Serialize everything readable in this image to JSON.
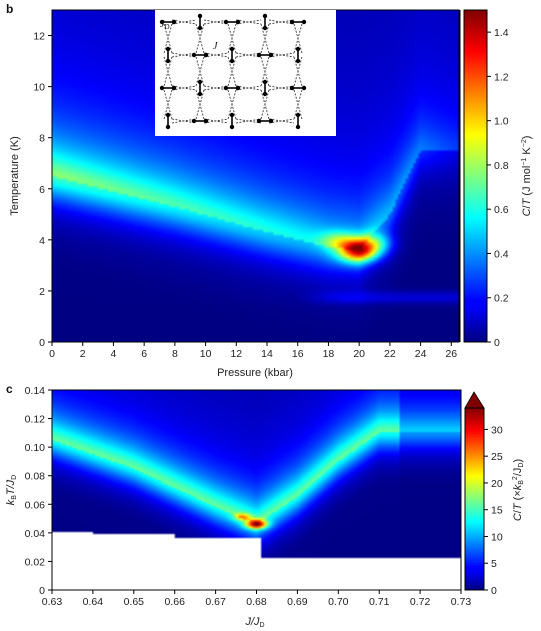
{
  "panel_b": {
    "label": "b",
    "inset": {
      "label_jd": "J",
      "label_jd_sub": "D",
      "label_j": "J"
    },
    "colorbar": {
      "label_main": "C/T (J mol",
      "label_exp1": "−1",
      "label_mid": " K",
      "label_exp2": "−2",
      "label_end": ")"
    }
  },
  "panel_c": {
    "label": "c",
    "colorbar": {
      "label_main": "C/T (×k",
      "label_sub": "B",
      "label_exp": "2",
      "label_mid": "/J",
      "label_sub2": "D",
      "label_end": ")"
    }
  },
  "chart_data": [
    {
      "type": "heatmap",
      "panel": "b",
      "xlabel": "Pressure (kbar)",
      "ylabel": "Temperature (K)",
      "xlim": [
        0,
        26.5
      ],
      "ylim": [
        0,
        13
      ],
      "xticks": [
        "0",
        "2",
        "4",
        "6",
        "8",
        "10",
        "12",
        "14",
        "16",
        "18",
        "20",
        "22",
        "24",
        "26"
      ],
      "yticks": [
        "0",
        "2",
        "4",
        "6",
        "8",
        "10",
        "12"
      ],
      "colorbar_ticks": [
        "0",
        "0.2",
        "0.4",
        "0.6",
        "0.8",
        "1.0",
        "1.2",
        "1.4"
      ],
      "colorbar_range": [
        0,
        1.5
      ],
      "colormap": "jet",
      "features": {
        "peak": {
          "pressure": 20,
          "temperature": 3.6,
          "value": 1.5
        },
        "broad_maximum_temperature_at_0_kbar": 6.5,
        "ridge": [
          [
            0,
            6.5
          ],
          [
            8,
            5.3
          ],
          [
            14,
            4.3
          ],
          [
            18,
            3.7
          ],
          [
            20,
            3.6
          ],
          [
            22,
            5
          ],
          [
            24,
            7.5
          ]
        ],
        "lower_transition_temperature": 1.75,
        "lower_transition_pressure_range": [
          16,
          26
        ]
      }
    },
    {
      "type": "heatmap",
      "panel": "c",
      "xlabel": "J/J",
      "xlabel_sub": "D",
      "ylabel": "k",
      "ylabel_sub": "B",
      "ylabel_mid": "T/J",
      "ylabel_sub2": "D",
      "xlim": [
        0.63,
        0.73
      ],
      "ylim": [
        0,
        0.14
      ],
      "xticks": [
        "0.63",
        "0.64",
        "0.65",
        "0.66",
        "0.67",
        "0.68",
        "0.69",
        "0.70",
        "0.71",
        "0.72",
        "0.73"
      ],
      "yticks": [
        "0",
        "0.02",
        "0.04",
        "0.06",
        "0.08",
        "0.10",
        "0.12",
        "0.14"
      ],
      "colorbar_ticks": [
        "0",
        "5",
        "10",
        "15",
        "20",
        "25",
        "30"
      ],
      "colorbar_range": [
        0,
        34
      ],
      "colormap": "jet",
      "features": {
        "peak": {
          "J_over_JD": 0.68,
          "kT_over_JD": 0.046,
          "value": 34
        },
        "ridge": [
          [
            0.63,
            0.105
          ],
          [
            0.65,
            0.085
          ],
          [
            0.67,
            0.058
          ],
          [
            0.68,
            0.046
          ],
          [
            0.69,
            0.065
          ],
          [
            0.7,
            0.09
          ],
          [
            0.71,
            0.11
          ]
        ],
        "data_lower_bound_T": [
          [
            0.63,
            0.041
          ],
          [
            0.64,
            0.039
          ],
          [
            0.66,
            0.037
          ],
          [
            0.678,
            0.036
          ],
          [
            0.681,
            0.023
          ],
          [
            0.73,
            0.023
          ]
        ]
      }
    }
  ]
}
